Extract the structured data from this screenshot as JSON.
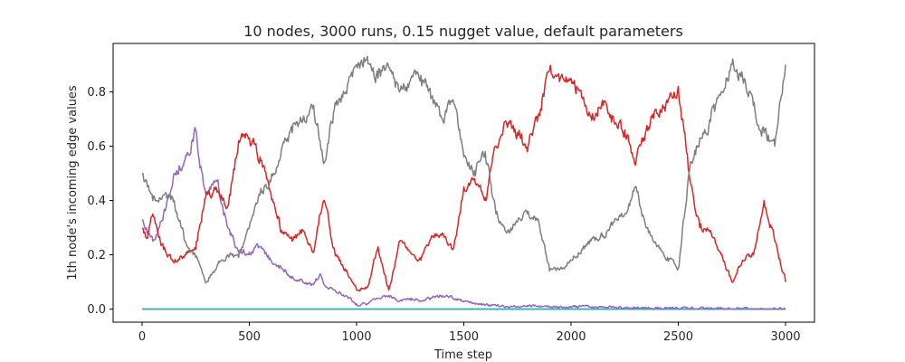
{
  "chart_data": {
    "type": "line",
    "title": "10 nodes, 3000 runs, 0.15 nugget value, default parameters",
    "xlabel": "Time step",
    "ylabel": "1th node's incoming edge values",
    "xlim": [
      -135,
      3135
    ],
    "ylim": [
      -0.048,
      0.978
    ],
    "x_ticks": [
      0,
      500,
      1000,
      1500,
      2000,
      2500,
      3000
    ],
    "x_tick_labels": [
      "0",
      "500",
      "1000",
      "1500",
      "2000",
      "2500",
      "3000"
    ],
    "y_ticks": [
      0.0,
      0.2,
      0.4,
      0.6,
      0.8
    ],
    "y_tick_labels": [
      "0.0",
      "0.2",
      "0.4",
      "0.6",
      "0.8"
    ],
    "grid": false,
    "legend": "none",
    "series": [
      {
        "color": "#1f77b4",
        "x": [
          0,
          3000
        ],
        "y": [
          0.0,
          0.0
        ]
      },
      {
        "color": "#ff7f0e",
        "x": [
          0,
          3000
        ],
        "y": [
          0.0,
          0.0
        ]
      },
      {
        "color": "#2ca02c",
        "x": [
          0,
          3000
        ],
        "y": [
          0.0,
          0.0
        ]
      },
      {
        "color": "#8c564b",
        "x": [
          0,
          3000
        ],
        "y": [
          0.0,
          0.0
        ]
      },
      {
        "color": "#e377c2",
        "x": [
          0,
          3000
        ],
        "y": [
          0.0,
          0.0
        ]
      },
      {
        "color": "#bcbd22",
        "x": [
          0,
          3000
        ],
        "y": [
          0.0,
          0.0
        ]
      },
      {
        "color": "#17becf",
        "x": [
          0,
          3000
        ],
        "y": [
          0.0,
          0.0
        ]
      },
      {
        "color": "#9467bd",
        "x": [
          0,
          20,
          50,
          100,
          150,
          200,
          250,
          270,
          300,
          350,
          400,
          450,
          500,
          550,
          600,
          650,
          700,
          750,
          800,
          830,
          850,
          900,
          950,
          1000,
          1050,
          1100,
          1150,
          1200,
          1250,
          1300,
          1350,
          1400,
          1450,
          1500,
          1550,
          1600,
          1700,
          1800,
          1900,
          2000,
          2050,
          2100,
          2200,
          2300,
          2400,
          2500,
          2600,
          2700,
          2800,
          2900,
          3000
        ],
        "y": [
          0.33,
          0.3,
          0.25,
          0.35,
          0.5,
          0.55,
          0.66,
          0.52,
          0.42,
          0.47,
          0.3,
          0.21,
          0.21,
          0.23,
          0.18,
          0.15,
          0.12,
          0.1,
          0.09,
          0.13,
          0.09,
          0.07,
          0.05,
          0.02,
          0.02,
          0.04,
          0.05,
          0.03,
          0.04,
          0.03,
          0.04,
          0.05,
          0.04,
          0.03,
          0.02,
          0.015,
          0.01,
          0.01,
          0.008,
          0.006,
          0.012,
          0.008,
          0.006,
          0.005,
          0.004,
          0.003,
          0.003,
          0.002,
          0.002,
          0.001,
          0.001
        ]
      },
      {
        "color": "#d62728",
        "x": [
          0,
          25,
          50,
          100,
          150,
          200,
          250,
          300,
          350,
          400,
          450,
          500,
          550,
          600,
          650,
          700,
          750,
          800,
          830,
          850,
          900,
          950,
          1000,
          1050,
          1100,
          1150,
          1200,
          1250,
          1300,
          1350,
          1400,
          1450,
          1500,
          1550,
          1600,
          1650,
          1700,
          1750,
          1800,
          1850,
          1900,
          1950,
          2000,
          2050,
          2100,
          2150,
          2200,
          2250,
          2300,
          2350,
          2400,
          2450,
          2500,
          2550,
          2600,
          2650,
          2700,
          2750,
          2800,
          2850,
          2900,
          2950,
          3000
        ],
        "y": [
          0.3,
          0.26,
          0.35,
          0.22,
          0.17,
          0.2,
          0.22,
          0.43,
          0.43,
          0.38,
          0.62,
          0.63,
          0.56,
          0.43,
          0.29,
          0.25,
          0.29,
          0.21,
          0.35,
          0.4,
          0.2,
          0.14,
          0.07,
          0.08,
          0.23,
          0.07,
          0.25,
          0.21,
          0.18,
          0.27,
          0.28,
          0.22,
          0.45,
          0.48,
          0.41,
          0.6,
          0.68,
          0.65,
          0.6,
          0.72,
          0.88,
          0.85,
          0.85,
          0.78,
          0.72,
          0.75,
          0.69,
          0.66,
          0.53,
          0.66,
          0.72,
          0.76,
          0.82,
          0.5,
          0.3,
          0.29,
          0.2,
          0.1,
          0.18,
          0.2,
          0.4,
          0.25,
          0.1
        ]
      },
      {
        "color": "#7f7f7f",
        "x": [
          0,
          25,
          50,
          100,
          150,
          200,
          250,
          300,
          350,
          400,
          450,
          500,
          550,
          600,
          650,
          700,
          750,
          800,
          830,
          850,
          900,
          950,
          1000,
          1050,
          1100,
          1150,
          1200,
          1250,
          1300,
          1350,
          1400,
          1450,
          1500,
          1550,
          1600,
          1650,
          1700,
          1750,
          1800,
          1850,
          1900,
          1950,
          2000,
          2050,
          2100,
          2150,
          2200,
          2250,
          2300,
          2350,
          2400,
          2450,
          2500,
          2550,
          2600,
          2650,
          2700,
          2750,
          2800,
          2850,
          2900,
          2950,
          3000
        ],
        "y": [
          0.5,
          0.45,
          0.4,
          0.42,
          0.4,
          0.25,
          0.19,
          0.1,
          0.16,
          0.2,
          0.19,
          0.3,
          0.42,
          0.47,
          0.59,
          0.65,
          0.7,
          0.75,
          0.62,
          0.54,
          0.76,
          0.8,
          0.9,
          0.93,
          0.85,
          0.89,
          0.8,
          0.84,
          0.86,
          0.78,
          0.7,
          0.77,
          0.56,
          0.51,
          0.58,
          0.35,
          0.28,
          0.32,
          0.36,
          0.32,
          0.14,
          0.15,
          0.18,
          0.22,
          0.26,
          0.27,
          0.32,
          0.35,
          0.45,
          0.3,
          0.23,
          0.19,
          0.15,
          0.5,
          0.63,
          0.69,
          0.8,
          0.9,
          0.85,
          0.75,
          0.65,
          0.6,
          0.9
        ]
      }
    ]
  }
}
